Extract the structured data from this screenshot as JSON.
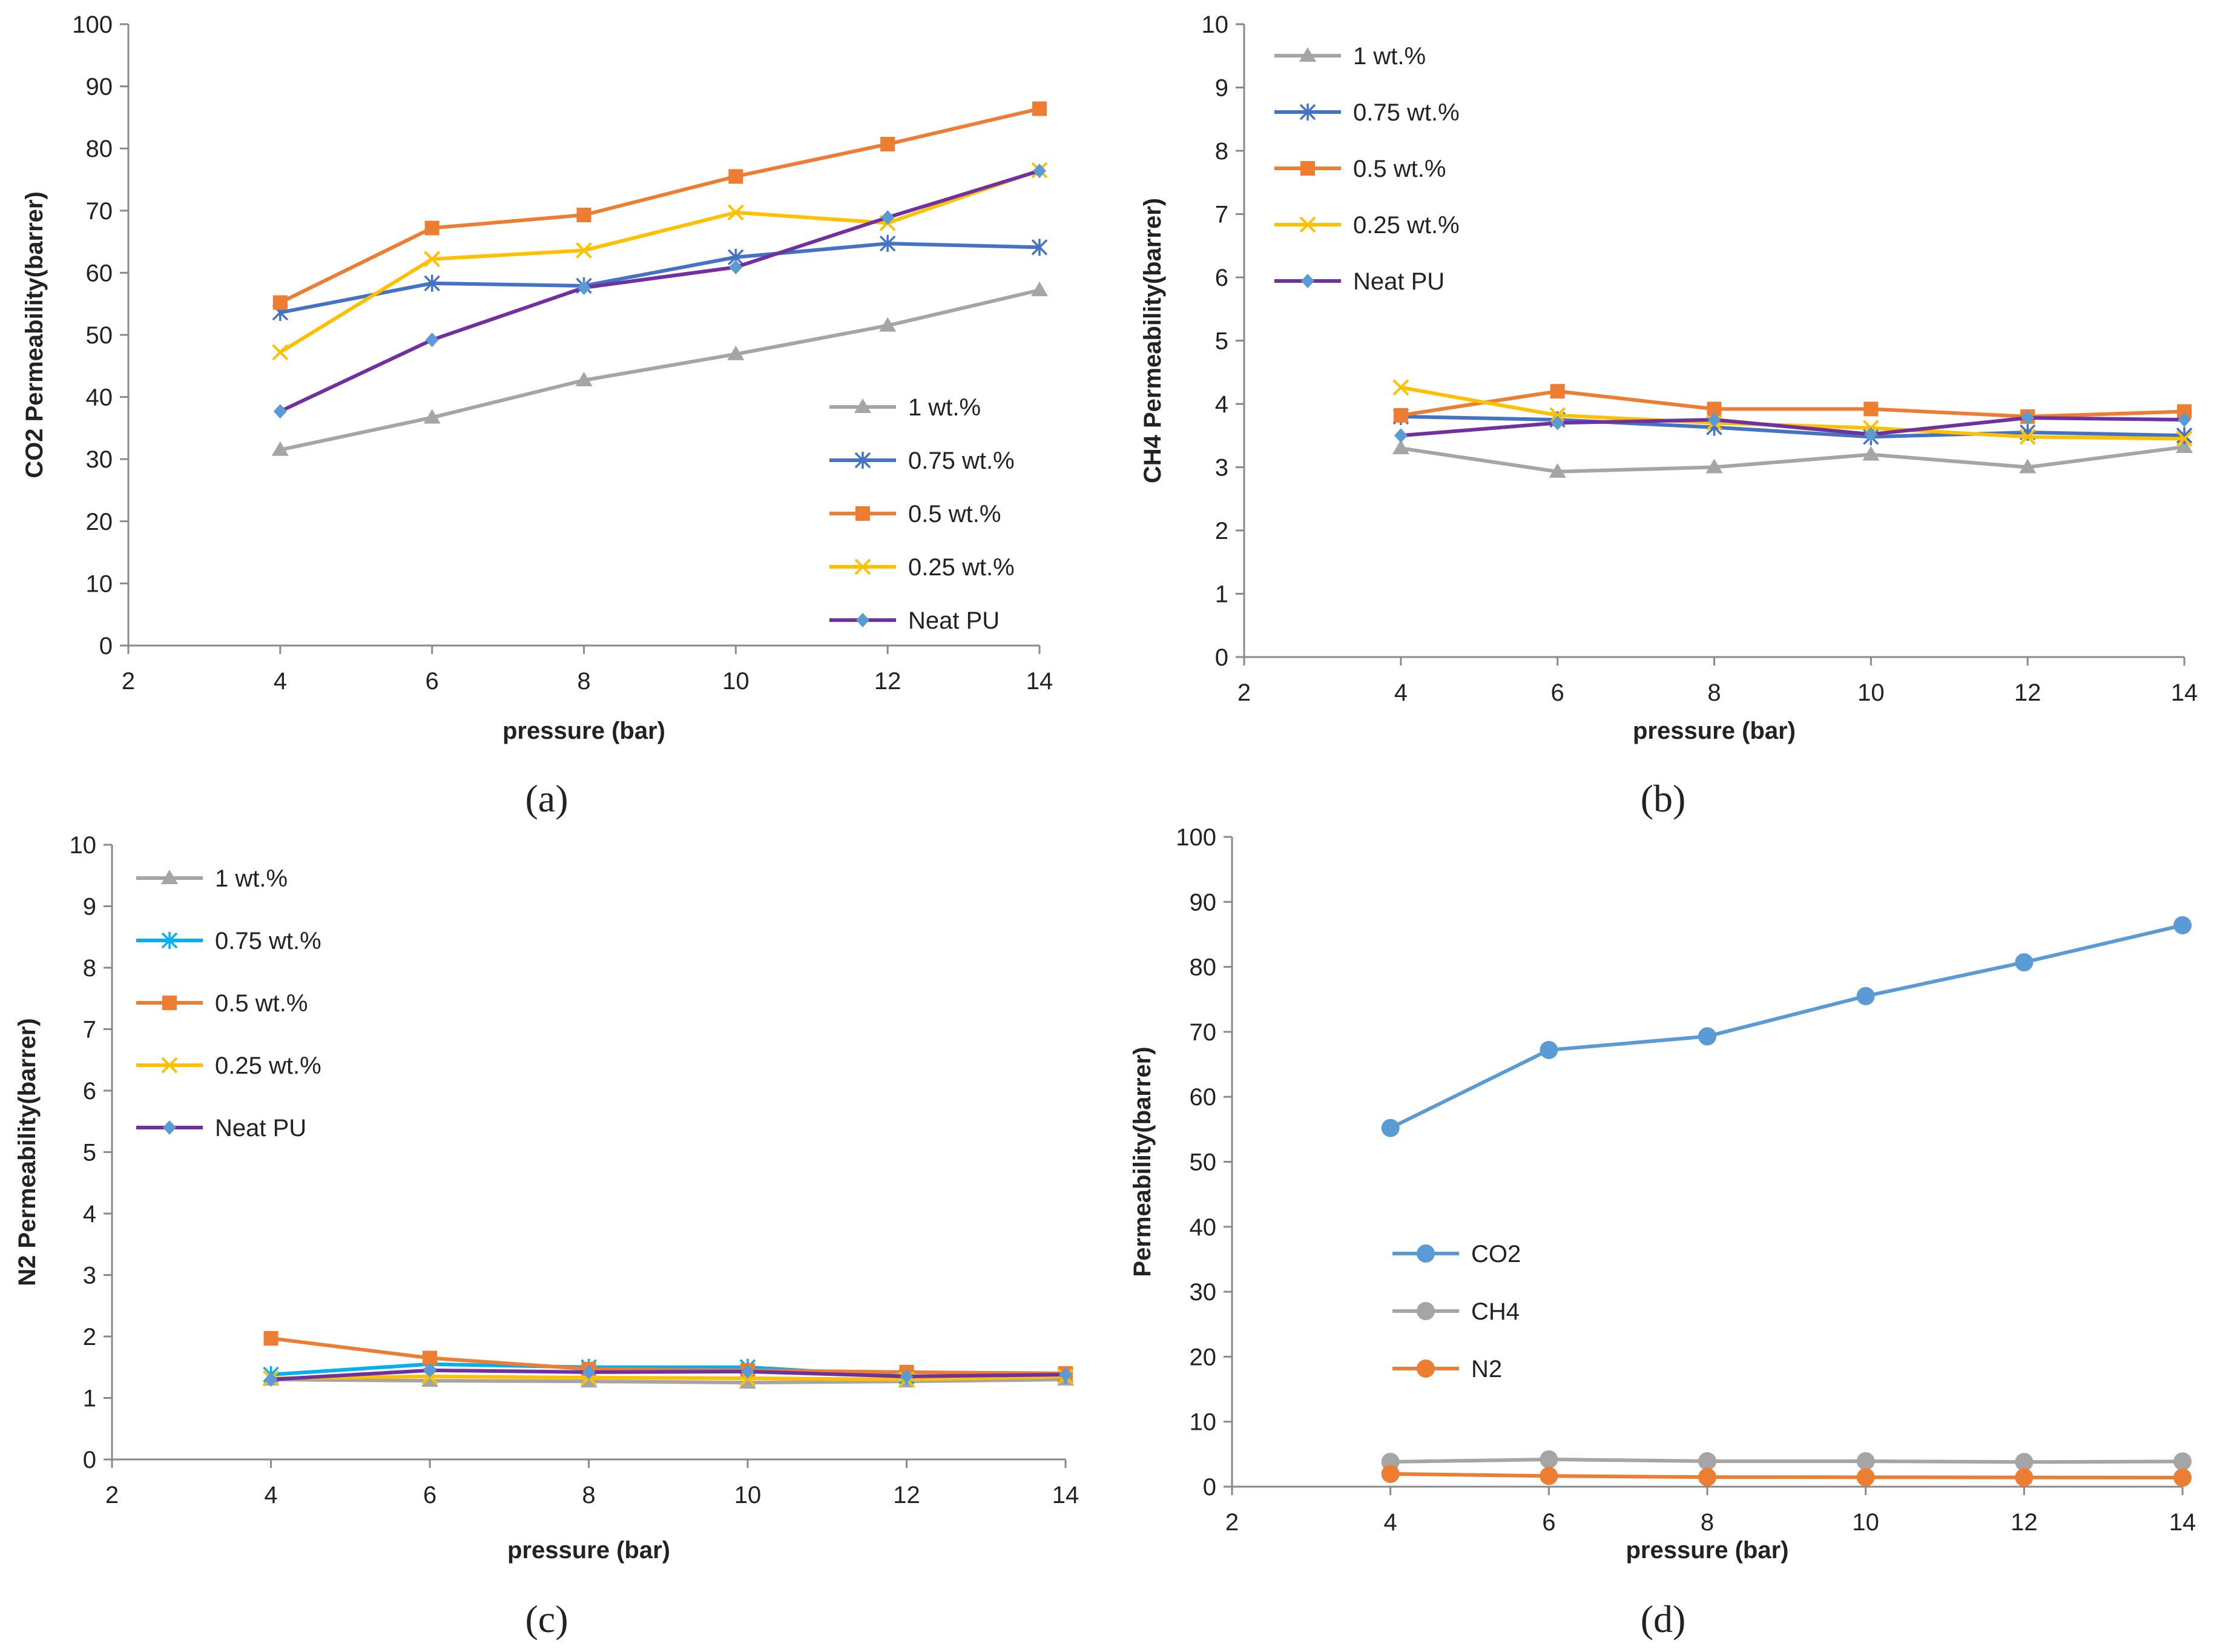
{
  "chart_data": [
    {
      "type": "line",
      "panel": "a",
      "x": [
        4,
        6,
        8,
        10,
        12,
        14
      ],
      "xlabel": "pressure (bar)",
      "ylabel": "CO2 Permeability(barrer)",
      "xlim": [
        2,
        14
      ],
      "ylim": [
        0,
        100
      ],
      "xticks": [
        2,
        4,
        6,
        8,
        10,
        12,
        14
      ],
      "yticks": [
        0,
        10,
        20,
        30,
        40,
        50,
        60,
        70,
        80,
        90,
        100
      ],
      "legend_position": "bottom-right",
      "series": [
        {
          "name": "1 wt.%",
          "color": "#A5A5A5",
          "marker": "triangle",
          "values": [
            31.5,
            36.7,
            42.7,
            46.9,
            51.5,
            57.2
          ]
        },
        {
          "name": "0.75 wt.%",
          "color": "#4472C4",
          "marker": "star",
          "values": [
            53.6,
            58.3,
            57.9,
            62.5,
            64.7,
            64.1
          ]
        },
        {
          "name": "0.5 wt.%",
          "color": "#ED7D31",
          "marker": "square",
          "values": [
            55.2,
            67.2,
            69.3,
            75.5,
            80.7,
            86.4
          ]
        },
        {
          "name": "0.25 wt.%",
          "color": "#FFC000",
          "marker": "x",
          "values": [
            47.2,
            62.2,
            63.6,
            69.7,
            68.0,
            76.5
          ]
        },
        {
          "name": "Neat PU",
          "color": "#7030A0",
          "marker": "diamond",
          "markerColor": "#5B9BD5",
          "values": [
            37.7,
            49.2,
            57.6,
            60.9,
            68.9,
            76.4
          ]
        }
      ]
    },
    {
      "type": "line",
      "panel": "b",
      "x": [
        4,
        6,
        8,
        10,
        12,
        14
      ],
      "xlabel": "pressure (bar)",
      "ylabel": "CH4 Permeability(barrer)",
      "xlim": [
        2,
        14
      ],
      "ylim": [
        0,
        10
      ],
      "xticks": [
        2,
        4,
        6,
        8,
        10,
        12,
        14
      ],
      "yticks": [
        0,
        1,
        2,
        3,
        4,
        5,
        6,
        7,
        8,
        9,
        10
      ],
      "legend_position": "top-left",
      "series": [
        {
          "name": "1 wt.%",
          "color": "#A5A5A5",
          "marker": "triangle",
          "values": [
            3.3,
            2.93,
            3.0,
            3.2,
            3.0,
            3.32
          ]
        },
        {
          "name": "0.75 wt.%",
          "color": "#4472C4",
          "marker": "star",
          "values": [
            3.8,
            3.75,
            3.63,
            3.48,
            3.55,
            3.5
          ]
        },
        {
          "name": "0.5 wt.%",
          "color": "#ED7D31",
          "marker": "square",
          "values": [
            3.82,
            4.2,
            3.92,
            3.92,
            3.8,
            3.88
          ]
        },
        {
          "name": "0.25 wt.%",
          "color": "#FFC000",
          "marker": "x",
          "values": [
            4.26,
            3.82,
            3.7,
            3.62,
            3.48,
            3.45
          ]
        },
        {
          "name": "Neat PU",
          "color": "#7030A0",
          "marker": "diamond",
          "markerColor": "#5B9BD5",
          "values": [
            3.5,
            3.7,
            3.75,
            3.52,
            3.78,
            3.75
          ]
        }
      ]
    },
    {
      "type": "line",
      "panel": "c",
      "x": [
        4,
        6,
        8,
        10,
        12,
        14
      ],
      "xlabel": "pressure (bar)",
      "ylabel": "N2 Permeability(barrer)",
      "xlim": [
        2,
        14
      ],
      "ylim": [
        0,
        10
      ],
      "xticks": [
        2,
        4,
        6,
        8,
        10,
        12,
        14
      ],
      "yticks": [
        0,
        1,
        2,
        3,
        4,
        5,
        6,
        7,
        8,
        9,
        10
      ],
      "legend_position": "top-left",
      "series": [
        {
          "name": "1 wt.%",
          "color": "#A5A5A5",
          "marker": "triangle",
          "values": [
            1.3,
            1.28,
            1.27,
            1.25,
            1.27,
            1.3
          ]
        },
        {
          "name": "0.75 wt.%",
          "color": "#00B0F0",
          "marker": "star",
          "values": [
            1.38,
            1.55,
            1.5,
            1.5,
            1.35,
            1.37
          ]
        },
        {
          "name": "0.5 wt.%",
          "color": "#ED7D31",
          "marker": "square",
          "values": [
            1.97,
            1.65,
            1.47,
            1.45,
            1.42,
            1.4
          ]
        },
        {
          "name": "0.25 wt.%",
          "color": "#FFC000",
          "marker": "x",
          "values": [
            1.32,
            1.35,
            1.33,
            1.32,
            1.3,
            1.35
          ]
        },
        {
          "name": "Neat PU",
          "color": "#7030A0",
          "marker": "diamond",
          "markerColor": "#5B9BD5",
          "values": [
            1.3,
            1.45,
            1.42,
            1.43,
            1.35,
            1.38
          ]
        }
      ]
    },
    {
      "type": "line",
      "panel": "d",
      "x": [
        4,
        6,
        8,
        10,
        12,
        14
      ],
      "xlabel": "pressure (bar)",
      "ylabel": "Permeability(barrer)",
      "xlim": [
        2,
        14
      ],
      "ylim": [
        0,
        100
      ],
      "xticks": [
        2,
        4,
        6,
        8,
        10,
        12,
        14
      ],
      "yticks": [
        0,
        10,
        20,
        30,
        40,
        50,
        60,
        70,
        80,
        90,
        100
      ],
      "legend_position": "center-left",
      "series": [
        {
          "name": "CO2",
          "color": "#5B9BD5",
          "marker": "circle",
          "values": [
            55.2,
            67.2,
            69.3,
            75.5,
            80.7,
            86.4
          ]
        },
        {
          "name": "CH4",
          "color": "#A5A5A5",
          "marker": "circle",
          "values": [
            3.82,
            4.2,
            3.92,
            3.92,
            3.8,
            3.88
          ]
        },
        {
          "name": "N2",
          "color": "#ED7D31",
          "marker": "circle",
          "values": [
            1.97,
            1.65,
            1.47,
            1.45,
            1.42,
            1.4
          ]
        }
      ]
    }
  ],
  "panel_labels": [
    "(a)",
    "(b)",
    "(c)",
    "(d)"
  ]
}
